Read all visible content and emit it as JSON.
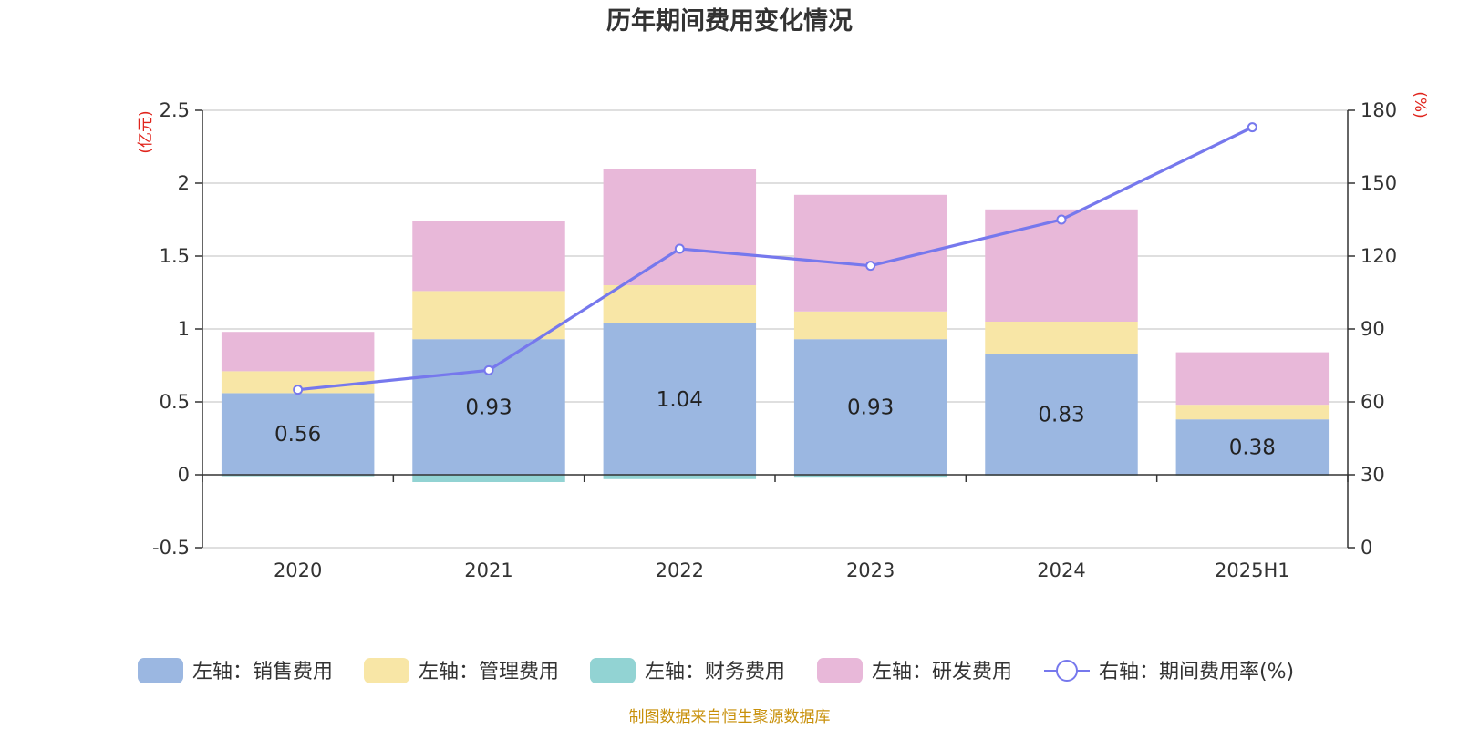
{
  "chart_data": {
    "type": "bar",
    "stacked": true,
    "title": "历年期间费用变化情况",
    "categories": [
      "2020",
      "2021",
      "2022",
      "2023",
      "2024",
      "2025H1"
    ],
    "y_left": {
      "unit": "(亿元)",
      "min": -0.5,
      "max": 2.5,
      "ticks": [
        -0.5,
        0,
        0.5,
        1,
        1.5,
        2,
        2.5
      ],
      "tick_labels": [
        "-0.5",
        "0",
        "0.5",
        "1",
        "1.5",
        "2",
        "2.5"
      ]
    },
    "y_right": {
      "unit": "(%)",
      "min": 0,
      "max": 180,
      "ticks": [
        0,
        30,
        60,
        90,
        120,
        150,
        180
      ],
      "tick_labels": [
        "0",
        "30",
        "60",
        "90",
        "120",
        "150",
        "180"
      ]
    },
    "series": [
      {
        "name": "左轴：销售费用",
        "type": "bar",
        "axis": "left",
        "color": "#9bb7e1",
        "values": [
          0.56,
          0.93,
          1.04,
          0.93,
          0.83,
          0.38
        ],
        "labels": [
          "0.56",
          "0.93",
          "1.04",
          "0.93",
          "0.83",
          "0.38"
        ]
      },
      {
        "name": "左轴：管理费用",
        "type": "bar",
        "axis": "left",
        "color": "#f8e6a6",
        "values": [
          0.15,
          0.33,
          0.26,
          0.19,
          0.22,
          0.1
        ]
      },
      {
        "name": "左轴：财务费用",
        "type": "bar",
        "axis": "left",
        "color": "#92d3d3",
        "values": [
          -0.01,
          -0.05,
          -0.03,
          -0.02,
          -0.005,
          -0.005
        ]
      },
      {
        "name": "左轴：研发费用",
        "type": "bar",
        "axis": "left",
        "color": "#e8b8d9",
        "values": [
          0.27,
          0.48,
          0.8,
          0.8,
          0.77,
          0.36
        ]
      },
      {
        "name": "右轴：期间费用率(%)",
        "type": "line",
        "axis": "right",
        "color": "#7678ed",
        "values": [
          65,
          73,
          123,
          116,
          135,
          173
        ]
      }
    ],
    "legend_position": "bottom",
    "grid": true
  },
  "source_note": "制图数据来自恒生聚源数据库"
}
